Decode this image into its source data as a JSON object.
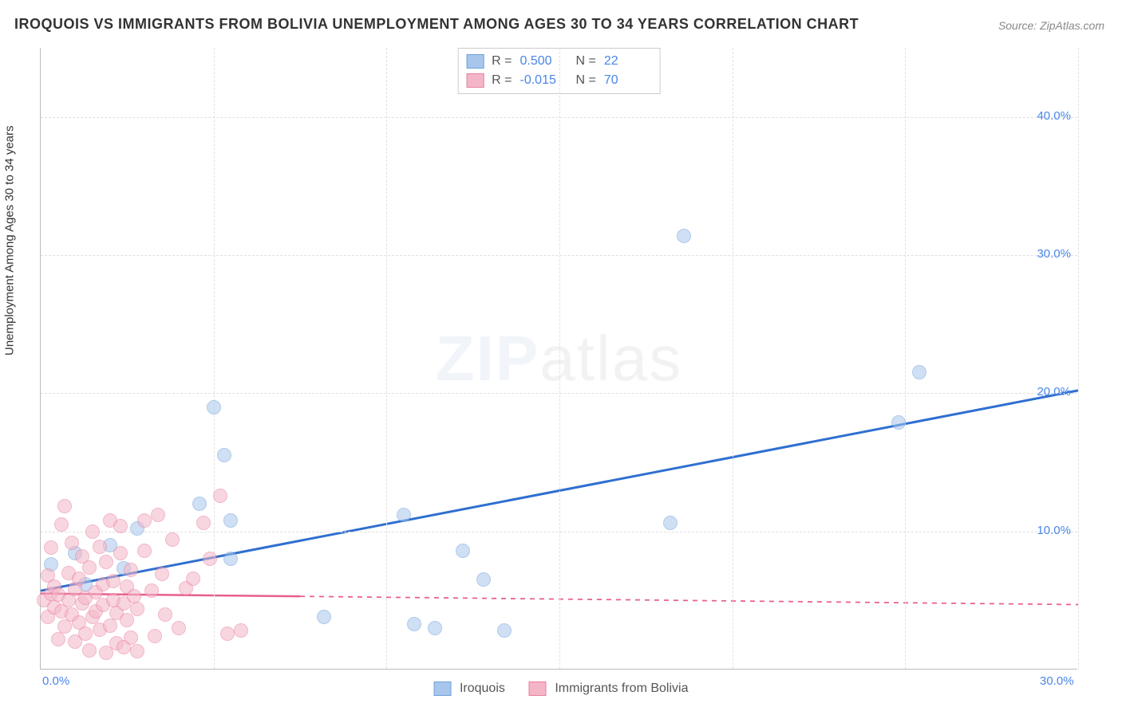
{
  "title": "IROQUOIS VS IMMIGRANTS FROM BOLIVIA UNEMPLOYMENT AMONG AGES 30 TO 34 YEARS CORRELATION CHART",
  "source": "Source: ZipAtlas.com",
  "ylabel": "Unemployment Among Ages 30 to 34 years",
  "watermark_a": "ZIP",
  "watermark_b": "atlas",
  "chart": {
    "type": "scatter",
    "xlim": [
      0,
      30
    ],
    "ylim": [
      0,
      45
    ],
    "x_ticks": [
      0,
      5,
      10,
      15,
      20,
      25,
      30
    ],
    "x_tick_labels": [
      "0.0%",
      "",
      "",
      "",
      "",
      "",
      "30.0%"
    ],
    "y_ticks": [
      10,
      20,
      30,
      40
    ],
    "y_tick_labels": [
      "10.0%",
      "20.0%",
      "30.0%",
      "40.0%"
    ],
    "grid_color": "#e0e0e0",
    "axis_color": "#bbbbbb",
    "tick_label_color": "#4a86e8",
    "background_color": "#ffffff",
    "marker_radius": 9,
    "marker_opacity": 0.55,
    "series": [
      {
        "name": "Iroquois",
        "color_fill": "#a8c6ec",
        "color_stroke": "#6fa0db",
        "r": "0.500",
        "n": "22",
        "trend": {
          "x1": 0,
          "y1": 5.7,
          "x2": 30,
          "y2": 20.2,
          "color": "#2f6fd0",
          "width": 3,
          "solid_until_x": 30,
          "dash": false
        },
        "points": [
          [
            0.3,
            7.6
          ],
          [
            1.0,
            8.4
          ],
          [
            1.3,
            6.2
          ],
          [
            2.0,
            9.0
          ],
          [
            2.4,
            7.3
          ],
          [
            2.8,
            10.2
          ],
          [
            4.6,
            12.0
          ],
          [
            5.0,
            19.0
          ],
          [
            5.3,
            15.5
          ],
          [
            5.5,
            10.8
          ],
          [
            5.5,
            8.0
          ],
          [
            8.2,
            3.8
          ],
          [
            10.5,
            11.2
          ],
          [
            10.8,
            3.3
          ],
          [
            11.4,
            3.0
          ],
          [
            12.2,
            8.6
          ],
          [
            12.8,
            6.5
          ],
          [
            13.4,
            2.8
          ],
          [
            18.2,
            10.6
          ],
          [
            18.6,
            31.4
          ],
          [
            24.8,
            17.9
          ],
          [
            25.4,
            21.5
          ]
        ]
      },
      {
        "name": "Immigrants from Bolivia",
        "color_fill": "#f4b6c6",
        "color_stroke": "#e87da0",
        "r": "-0.015",
        "n": "70",
        "trend": {
          "x1": 0,
          "y1": 5.5,
          "x2": 30,
          "y2": 4.7,
          "color": "#e85f8e",
          "width": 2.5,
          "solid_until_x": 7.5,
          "dash": true
        },
        "points": [
          [
            0.1,
            5.0
          ],
          [
            0.2,
            6.8
          ],
          [
            0.2,
            3.8
          ],
          [
            0.3,
            5.5
          ],
          [
            0.3,
            8.8
          ],
          [
            0.4,
            4.5
          ],
          [
            0.4,
            6.0
          ],
          [
            0.5,
            2.2
          ],
          [
            0.5,
            5.4
          ],
          [
            0.6,
            10.5
          ],
          [
            0.6,
            4.2
          ],
          [
            0.7,
            11.8
          ],
          [
            0.7,
            3.1
          ],
          [
            0.8,
            7.0
          ],
          [
            0.8,
            5.0
          ],
          [
            0.9,
            4.0
          ],
          [
            0.9,
            9.2
          ],
          [
            1.0,
            2.0
          ],
          [
            1.0,
            5.8
          ],
          [
            1.1,
            3.4
          ],
          [
            1.1,
            6.6
          ],
          [
            1.2,
            8.2
          ],
          [
            1.2,
            4.8
          ],
          [
            1.3,
            5.2
          ],
          [
            1.3,
            2.6
          ],
          [
            1.4,
            1.4
          ],
          [
            1.4,
            7.4
          ],
          [
            1.5,
            3.8
          ],
          [
            1.5,
            10.0
          ],
          [
            1.6,
            5.6
          ],
          [
            1.6,
            4.2
          ],
          [
            1.7,
            8.9
          ],
          [
            1.7,
            2.9
          ],
          [
            1.8,
            6.2
          ],
          [
            1.8,
            4.7
          ],
          [
            1.9,
            1.2
          ],
          [
            1.9,
            7.8
          ],
          [
            2.0,
            10.8
          ],
          [
            2.0,
            3.2
          ],
          [
            2.1,
            5.0
          ],
          [
            2.1,
            6.4
          ],
          [
            2.2,
            1.9
          ],
          [
            2.2,
            4.1
          ],
          [
            2.3,
            8.4
          ],
          [
            2.3,
            10.4
          ],
          [
            2.4,
            4.8
          ],
          [
            2.4,
            1.6
          ],
          [
            2.5,
            6.0
          ],
          [
            2.5,
            3.6
          ],
          [
            2.6,
            7.2
          ],
          [
            2.6,
            2.3
          ],
          [
            2.7,
            5.3
          ],
          [
            2.8,
            1.3
          ],
          [
            2.8,
            4.4
          ],
          [
            3.0,
            8.6
          ],
          [
            3.0,
            10.8
          ],
          [
            3.2,
            5.7
          ],
          [
            3.3,
            2.4
          ],
          [
            3.5,
            6.9
          ],
          [
            3.6,
            4.0
          ],
          [
            3.8,
            9.4
          ],
          [
            4.0,
            3.0
          ],
          [
            4.2,
            5.9
          ],
          [
            4.4,
            6.6
          ],
          [
            4.7,
            10.6
          ],
          [
            5.2,
            12.6
          ],
          [
            5.4,
            2.6
          ],
          [
            5.8,
            2.8
          ],
          [
            4.9,
            8.0
          ],
          [
            3.4,
            11.2
          ]
        ]
      }
    ],
    "legend_top": {
      "r_label": "R  =",
      "n_label": "N  ="
    },
    "legend_bottom": {
      "items": [
        "Iroquois",
        "Immigrants from Bolivia"
      ]
    }
  }
}
